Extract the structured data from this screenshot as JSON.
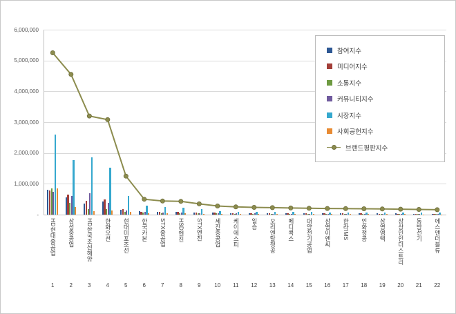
{
  "page": {
    "background": "#FFFFFF",
    "border_color": "#C8C8C8"
  },
  "chart_data": {
    "type": "bar",
    "subtype": "clustered-bars-with-line-overlay",
    "title": "",
    "xlabel": "",
    "ylabel": "",
    "ylim": [
      0,
      6000000
    ],
    "ytick_interval": 1000000,
    "ytick_labels_top_to_bottom": [
      "6,000,000",
      "5,000,000",
      "4,000,000",
      "3,000,000",
      "2,000,000",
      "1,000,000",
      "-"
    ],
    "grid": true,
    "gridline_color": "#D9D9D9",
    "axis_color": "#BFBFBF",
    "legend_position": "inset-top-right",
    "categories": [
      "HD현대중공업",
      "삼성중공업",
      "HD한국조선해양",
      "한화오션",
      "현대미포조선",
      "한국카본",
      "STX중공업",
      "HSD엔진",
      "STX엔진",
      "세진중공업",
      "케이에스피",
      "일승",
      "오리엔탈정공",
      "메디콕스",
      "대양전기공업",
      "삼영이엔씨",
      "한라IMS",
      "인화정공",
      "삼영엠텍",
      "상상인인더스트리",
      "동방선기",
      "에스앤더블류"
    ],
    "rank_labels": [
      "1",
      "2",
      "3",
      "4",
      "5",
      "6",
      "7",
      "8",
      "9",
      "10",
      "11",
      "12",
      "13",
      "14",
      "15",
      "16",
      "17",
      "18",
      "19",
      "20",
      "21",
      "22"
    ],
    "series": [
      {
        "name": "참여지수",
        "type": "bar",
        "color": "#2E5894",
        "values": [
          800000,
          550000,
          350000,
          420000,
          150000,
          120000,
          95000,
          85000,
          72000,
          62000,
          55000,
          51000,
          48000,
          46000,
          44000,
          42000,
          40000,
          38000,
          36000,
          34000,
          32000,
          30000
        ]
      },
      {
        "name": "미디어지수",
        "type": "bar",
        "color": "#A33E39",
        "values": [
          780000,
          650000,
          450000,
          500000,
          180000,
          100000,
          82000,
          90000,
          70000,
          58000,
          52000,
          48000,
          45000,
          43000,
          41000,
          39000,
          37000,
          35000,
          33000,
          31000,
          29000,
          27000
        ]
      },
      {
        "name": "소통지수",
        "type": "bar",
        "color": "#6E9A41",
        "values": [
          860000,
          390000,
          180000,
          190000,
          100000,
          62000,
          50000,
          48000,
          40000,
          34000,
          30000,
          28000,
          26000,
          25000,
          24000,
          23000,
          22000,
          21000,
          20000,
          19000,
          18000,
          17000
        ]
      },
      {
        "name": "커뮤니티지수",
        "type": "bar",
        "color": "#705A9E",
        "values": [
          740000,
          610000,
          700000,
          380000,
          140000,
          88000,
          70000,
          60000,
          50000,
          44000,
          38000,
          35000,
          33000,
          31000,
          29000,
          27000,
          26000,
          25000,
          24000,
          23000,
          22000,
          21000
        ]
      },
      {
        "name": "시장지수",
        "type": "bar",
        "color": "#35A8CE",
        "values": [
          2600000,
          1760000,
          1850000,
          1520000,
          610000,
          280000,
          250000,
          230000,
          180000,
          120000,
          100000,
          95000,
          90000,
          85000,
          80000,
          78000,
          76000,
          74000,
          72000,
          70000,
          68000,
          66000
        ]
      },
      {
        "name": "사회공헌지수",
        "type": "bar",
        "color": "#E88B33",
        "values": [
          840000,
          250000,
          120000,
          130000,
          80000,
          50000,
          42000,
          38000,
          30000,
          25000,
          22000,
          20000,
          19000,
          18000,
          17000,
          16000,
          15000,
          14000,
          13000,
          12000,
          11000,
          10000
        ]
      },
      {
        "name": "브랜드평판지수",
        "type": "line",
        "color": "#8C8C4E",
        "marker": "circle",
        "values": [
          5250000,
          4550000,
          3200000,
          3080000,
          1250000,
          500000,
          440000,
          430000,
          350000,
          280000,
          250000,
          235000,
          225000,
          215000,
          205000,
          200000,
          195000,
          190000,
          183000,
          176000,
          168000,
          160000
        ]
      }
    ]
  }
}
